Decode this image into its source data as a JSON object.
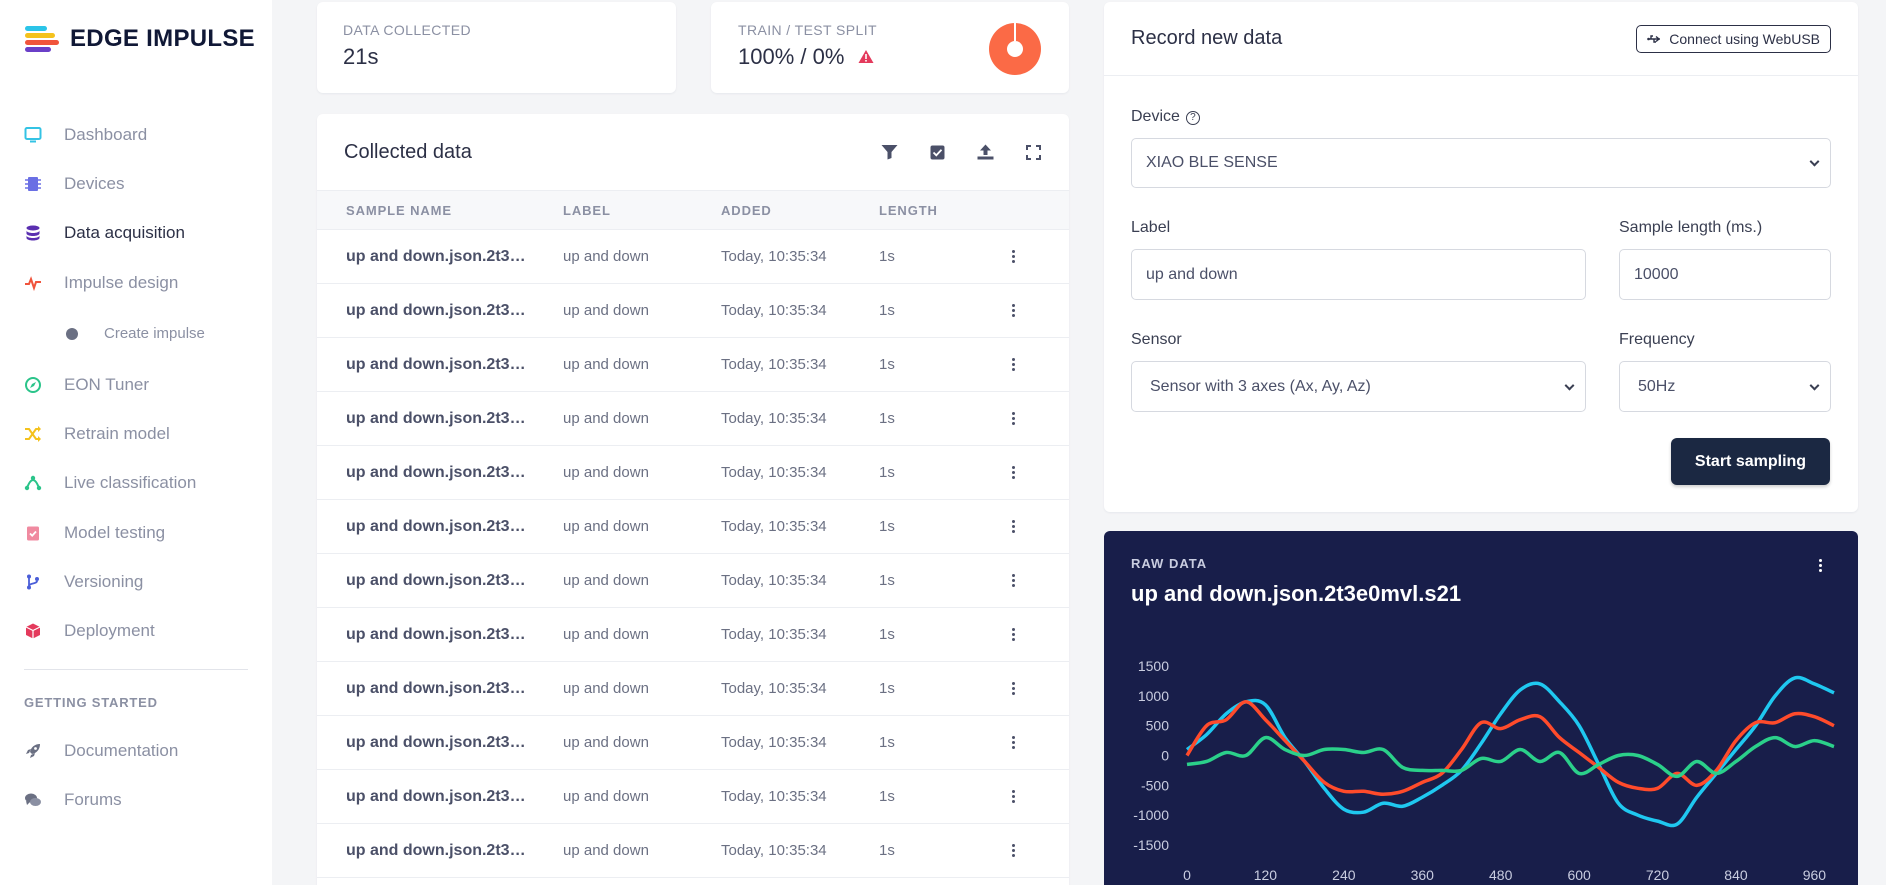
{
  "brand": {
    "name": "EDGE IMPULSE"
  },
  "sidebar": {
    "items": [
      {
        "label": "Dashboard",
        "icon": "monitor-icon",
        "color": "#34c3e4"
      },
      {
        "label": "Devices",
        "icon": "chip-icon",
        "color": "#6a6fe4"
      },
      {
        "label": "Data acquisition",
        "icon": "database-icon",
        "color": "#5a2fb0",
        "active": true
      },
      {
        "label": "Impulse design",
        "icon": "pulse-icon",
        "color": "#f0543c"
      }
    ],
    "sub_items": [
      {
        "label": "Create impulse"
      }
    ],
    "items_after": [
      {
        "label": "EON Tuner",
        "icon": "compass-icon",
        "color": "#2bc48a"
      },
      {
        "label": "Retrain model",
        "icon": "shuffle-icon",
        "color": "#f4c21d"
      },
      {
        "label": "Live classification",
        "icon": "network-icon",
        "color": "#2bc48a"
      },
      {
        "label": "Model testing",
        "icon": "clipboard-check-icon",
        "color": "#f08aa0"
      },
      {
        "label": "Versioning",
        "icon": "git-branch-icon",
        "color": "#4a5ed8"
      },
      {
        "label": "Deployment",
        "icon": "box-icon",
        "color": "#e43a5c"
      }
    ],
    "section_heading": "GETTING STARTED",
    "getting_started": [
      {
        "label": "Documentation",
        "icon": "rocket-icon",
        "color": "#6b7083"
      },
      {
        "label": "Forums",
        "icon": "chat-icon",
        "color": "#6b7083"
      }
    ]
  },
  "stats": {
    "collected": {
      "label": "DATA COLLECTED",
      "value": "21s"
    },
    "split": {
      "label": "TRAIN / TEST SPLIT",
      "value": "100% / 0%",
      "train_fraction": 1.0
    }
  },
  "collected_data": {
    "title": "Collected data",
    "columns": [
      "SAMPLE NAME",
      "LABEL",
      "ADDED",
      "LENGTH"
    ],
    "rows": [
      {
        "name": "up and down.json.2t3e0...",
        "label": "up and down",
        "added": "Today, 10:35:34",
        "length": "1s"
      },
      {
        "name": "up and down.json.2t3e0...",
        "label": "up and down",
        "added": "Today, 10:35:34",
        "length": "1s"
      },
      {
        "name": "up and down.json.2t3e0...",
        "label": "up and down",
        "added": "Today, 10:35:34",
        "length": "1s"
      },
      {
        "name": "up and down.json.2t3e0...",
        "label": "up and down",
        "added": "Today, 10:35:34",
        "length": "1s"
      },
      {
        "name": "up and down.json.2t3e0...",
        "label": "up and down",
        "added": "Today, 10:35:34",
        "length": "1s"
      },
      {
        "name": "up and down.json.2t3e0...",
        "label": "up and down",
        "added": "Today, 10:35:34",
        "length": "1s"
      },
      {
        "name": "up and down.json.2t3e0...",
        "label": "up and down",
        "added": "Today, 10:35:34",
        "length": "1s"
      },
      {
        "name": "up and down.json.2t3e0...",
        "label": "up and down",
        "added": "Today, 10:35:34",
        "length": "1s"
      },
      {
        "name": "up and down.json.2t3e0...",
        "label": "up and down",
        "added": "Today, 10:35:34",
        "length": "1s"
      },
      {
        "name": "up and down.json.2t3e0...",
        "label": "up and down",
        "added": "Today, 10:35:34",
        "length": "1s"
      },
      {
        "name": "up and down.json.2t3e0...",
        "label": "up and down",
        "added": "Today, 10:35:34",
        "length": "1s"
      },
      {
        "name": "up and down.json.2t3e0...",
        "label": "up and down",
        "added": "Today, 10:35:34",
        "length": "1s"
      }
    ]
  },
  "record": {
    "title": "Record new data",
    "webusb_label": "Connect using WebUSB",
    "device_label": "Device",
    "device_value": "XIAO BLE SENSE",
    "label_label": "Label",
    "label_value": "up and down",
    "length_label": "Sample length (ms.)",
    "length_value": "10000",
    "sensor_label": "Sensor",
    "sensor_value": "Sensor with 3 axes (Ax, Ay, Az)",
    "frequency_label": "Frequency",
    "frequency_value": "50Hz",
    "start_label": "Start sampling"
  },
  "raw_data": {
    "label": "RAW DATA",
    "title": "up and down.json.2t3e0mvl.s21"
  },
  "chart_data": {
    "type": "line",
    "x": [
      0,
      30,
      60,
      90,
      120,
      150,
      180,
      210,
      240,
      270,
      300,
      330,
      360,
      390,
      420,
      450,
      480,
      510,
      540,
      570,
      600,
      630,
      660,
      690,
      720,
      750,
      780,
      810,
      840,
      870,
      900,
      930,
      960,
      990
    ],
    "series": [
      {
        "color": "#1fc8f0",
        "values": [
          100,
          350,
          700,
          900,
          850,
          300,
          -100,
          -550,
          -900,
          -950,
          -800,
          -850,
          -700,
          -500,
          -250,
          200,
          700,
          1100,
          1200,
          900,
          500,
          -150,
          -800,
          -1000,
          -1100,
          -1150,
          -700,
          -300,
          100,
          500,
          1000,
          1300,
          1200,
          1050
        ]
      },
      {
        "color": "#ff4b2b",
        "values": [
          0,
          500,
          600,
          900,
          600,
          250,
          -100,
          -450,
          -600,
          -600,
          -650,
          -600,
          -450,
          -300,
          100,
          550,
          450,
          600,
          650,
          300,
          50,
          -200,
          -450,
          -550,
          -550,
          -300,
          -500,
          -250,
          250,
          550,
          550,
          700,
          650,
          500
        ]
      },
      {
        "color": "#2bd08a",
        "values": [
          -150,
          -100,
          50,
          0,
          300,
          100,
          0,
          100,
          100,
          50,
          100,
          -200,
          -250,
          -250,
          -250,
          -50,
          -100,
          100,
          -100,
          50,
          -300,
          -150,
          0,
          0,
          -150,
          -350,
          -100,
          -300,
          -100,
          150,
          300,
          150,
          250,
          150
        ]
      }
    ],
    "xlim": [
      0,
      990
    ],
    "ylim": [
      -1500,
      1500
    ],
    "xticks": [
      0,
      120,
      240,
      360,
      480,
      600,
      720,
      840,
      960
    ],
    "yticks": [
      1500,
      1000,
      500,
      0,
      -500,
      -1000,
      -1500
    ]
  }
}
